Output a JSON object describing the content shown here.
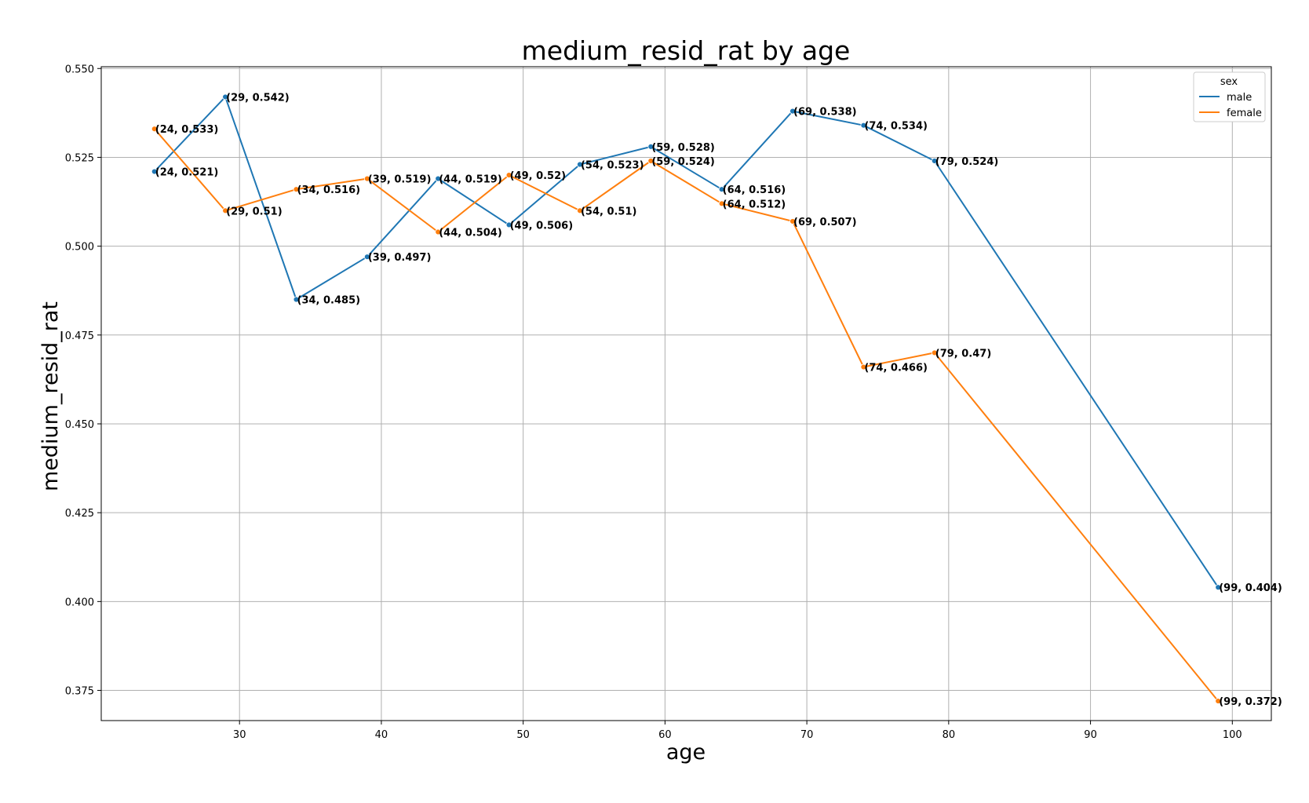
{
  "chart_data": {
    "type": "line",
    "title": "medium_resid_rat by age",
    "xlabel": "age",
    "ylabel": "medium_resid_rat",
    "xlim": [
      20.25,
      102.75
    ],
    "ylim": [
      0.3665,
      0.5505
    ],
    "xticks": [
      30,
      40,
      50,
      60,
      70,
      80,
      90,
      100
    ],
    "xtick_labels": [
      "30",
      "40",
      "50",
      "60",
      "70",
      "80",
      "90",
      "100"
    ],
    "yticks": [
      0.375,
      0.4,
      0.425,
      0.45,
      0.475,
      0.5,
      0.525,
      0.55
    ],
    "ytick_labels": [
      "0.375",
      "0.400",
      "0.425",
      "0.450",
      "0.475",
      "0.500",
      "0.525",
      "0.550"
    ],
    "grid": true,
    "legend": {
      "title": "sex",
      "position": "top-right"
    },
    "series": [
      {
        "name": "male",
        "color": "#1f77b4",
        "x": [
          24,
          29,
          34,
          39,
          44,
          49,
          54,
          59,
          64,
          69,
          74,
          79,
          99
        ],
        "y": [
          0.521,
          0.542,
          0.485,
          0.497,
          0.519,
          0.506,
          0.523,
          0.528,
          0.516,
          0.538,
          0.534,
          0.524,
          0.404
        ],
        "labels": [
          "(24, 0.521)",
          "(29, 0.542)",
          "(34, 0.485)",
          "(39, 0.497)",
          "(44, 0.519)",
          "(49, 0.506)",
          "(54, 0.523)",
          "(59, 0.528)",
          "(64, 0.516)",
          "(69, 0.538)",
          "(74, 0.534)",
          "(79, 0.524)",
          "(99, 0.404)"
        ]
      },
      {
        "name": "female",
        "color": "#ff7f0e",
        "x": [
          24,
          29,
          34,
          39,
          44,
          49,
          54,
          59,
          64,
          69,
          74,
          79,
          99
        ],
        "y": [
          0.533,
          0.51,
          0.516,
          0.519,
          0.504,
          0.52,
          0.51,
          0.524,
          0.512,
          0.507,
          0.466,
          0.47,
          0.372
        ],
        "labels": [
          "(24, 0.533)",
          "(29, 0.51)",
          "(34, 0.516)",
          "(39, 0.519)",
          "(44, 0.504)",
          "(49, 0.52)",
          "(54, 0.51)",
          "(59, 0.524)",
          "(64, 0.512)",
          "(69, 0.507)",
          "(74, 0.466)",
          "(79, 0.47)",
          "(99, 0.372)"
        ]
      }
    ]
  }
}
